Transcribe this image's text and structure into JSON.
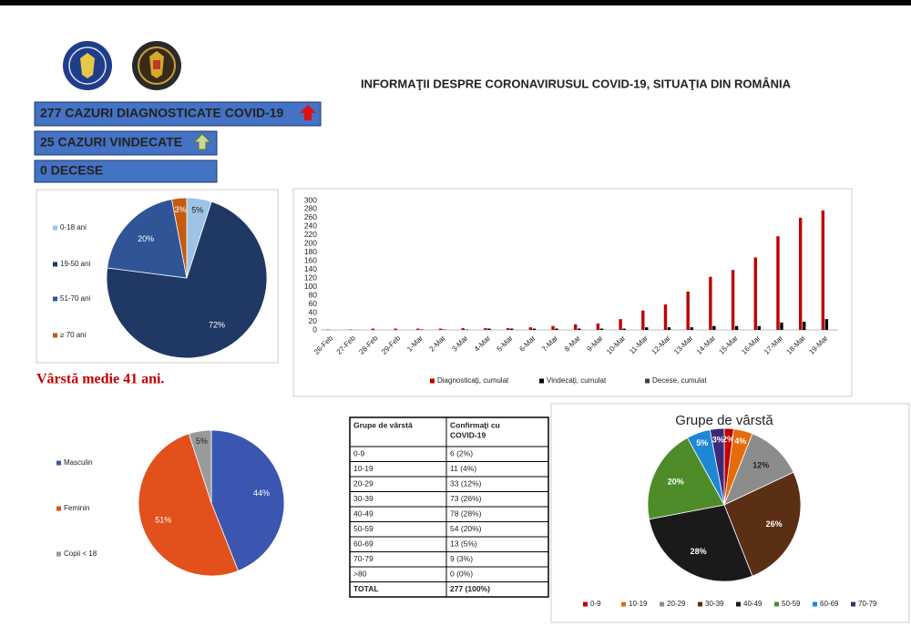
{
  "header": {
    "title": "INFORMAŢII DESPRE CORONAVIRUSUL COVID-19, SITUAŢIA DIN ROMÂNIA"
  },
  "status": [
    "277 CAZURI DIAGNOSTICATE COVID-19",
    "25 CAZURI VINDECATE",
    "0 DECESE"
  ],
  "note": "Vârstă medie 41 ani.",
  "table": {
    "header": [
      [
        "Grupe de vârstă"
      ],
      [
        "Confirmaţi cu",
        "COVID-19"
      ]
    ],
    "rows": [
      [
        "0-9",
        "6 (2%)"
      ],
      [
        "10-19",
        "11 (4%)"
      ],
      [
        "20-29",
        "33 (12%)"
      ],
      [
        "30-39",
        "73 (26%)"
      ],
      [
        "40-49",
        "78 (28%)"
      ],
      [
        "50-59",
        "54 (20%)"
      ],
      [
        "60-69",
        "13 (5%)"
      ],
      [
        "70-79",
        "9 (3%)"
      ],
      [
        ">80",
        "0 (0%)"
      ],
      [
        "TOTAL",
        "277 (100%)"
      ]
    ]
  },
  "chart_data": [
    {
      "type": "pie",
      "legend": "left",
      "categories": [
        "0-18 ani",
        "19-50 ani",
        "51-70 ani",
        "≥ 70 ani"
      ],
      "values": [
        5,
        72,
        20,
        3
      ],
      "value_labels": [
        "5%",
        "72%",
        "20%",
        "3%"
      ],
      "colors": [
        "#9dc3e6",
        "#1f3864",
        "#2f5597",
        "#c55a11"
      ]
    },
    {
      "type": "bar",
      "legend": "bottom",
      "categories": [
        "26-Feb",
        "27-Feb",
        "28-Feb",
        "29-Feb",
        "1-Mar",
        "2-Mar",
        "3-Mar",
        "4-Mar",
        "5-Mar",
        "6-Mar",
        "7-Mar",
        "8-Mar",
        "9-Mar",
        "10-Mar",
        "11-Mar",
        "12-Mar",
        "13-Mar",
        "14-Mar",
        "15-Mar",
        "16-Mar",
        "17-Mar",
        "18-Mar",
        "19-Mar"
      ],
      "series": [
        {
          "name": "Diagnosticaţi, cumulat",
          "color": "#c00000",
          "values": [
            1,
            1,
            3,
            3,
            3,
            3,
            4,
            4,
            4,
            6,
            9,
            13,
            15,
            25,
            45,
            59,
            89,
            123,
            139,
            168,
            217,
            260,
            277
          ]
        },
        {
          "name": "Vindecaţi, cumulat",
          "color": "#000000",
          "values": [
            0,
            0,
            0,
            0,
            1,
            1,
            1,
            3,
            3,
            3,
            3,
            3,
            3,
            3,
            6,
            6,
            6,
            9,
            9,
            9,
            17,
            19,
            25
          ]
        },
        {
          "name": "Decese, cumulat",
          "color": "#404040",
          "values": [
            0,
            0,
            0,
            0,
            0,
            0,
            0,
            0,
            0,
            0,
            0,
            0,
            0,
            0,
            0,
            0,
            0,
            0,
            0,
            0,
            0,
            0,
            0
          ]
        }
      ],
      "ylim": [
        0,
        300
      ],
      "yticks": [
        0,
        20,
        40,
        60,
        80,
        100,
        120,
        140,
        160,
        180,
        200,
        220,
        240,
        260,
        280,
        300
      ],
      "grid": false
    },
    {
      "type": "pie",
      "legend": "left",
      "categories": [
        "Masculin",
        "Feminin",
        "Copii < 18"
      ],
      "values": [
        44,
        51,
        5
      ],
      "value_labels": [
        "44%",
        "51%",
        "5%"
      ],
      "colors": [
        "#3a56b0",
        "#e2501c",
        "#9a9a9a"
      ]
    },
    {
      "type": "pie",
      "legend": "bottom",
      "title": "Grupe de vârstă",
      "categories": [
        "0-9",
        "10-19",
        "20-29",
        "30-39",
        "40-49",
        "50-59",
        "60-69",
        "70-79"
      ],
      "values": [
        2,
        4,
        12,
        26,
        28,
        20,
        5,
        3
      ],
      "value_labels": [
        "2%",
        "4%",
        "12%",
        "26%",
        "28%",
        "20%",
        "5%",
        "3%"
      ],
      "colors": [
        "#c00000",
        "#e46c0a",
        "#8c8c8c",
        "#5a2f14",
        "#1a1a1a",
        "#4e8c2a",
        "#1e88d6",
        "#3b2a7a"
      ]
    }
  ]
}
